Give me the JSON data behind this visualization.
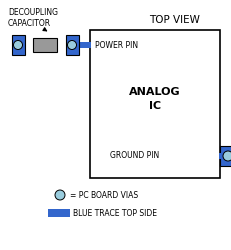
{
  "bg_color": "#ffffff",
  "border_color": "#000000",
  "blue_color": "#3366cc",
  "gray_color": "#999999",
  "light_blue_circle": "#99ccdd",
  "font_color": "#000000",
  "fig_w": 2.32,
  "fig_h": 2.5,
  "dpi": 100,
  "title": "TOP VIEW",
  "analog_ic": "ANALOG\nIC",
  "power_pin": "POWER PIN",
  "ground_pin": "GROUND PIN",
  "decoupling": "DECOUPLING\nCAPACITOR",
  "legend_via": "= PC BOARD VIAS",
  "legend_trace": "BLUE TRACE TOP SIDE"
}
